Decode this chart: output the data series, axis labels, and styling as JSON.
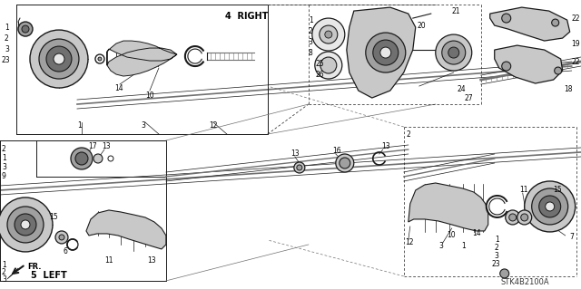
{
  "bg_color": "#ffffff",
  "line_color": "#1a1a1a",
  "gray1": "#c8c8c8",
  "gray2": "#a0a0a0",
  "gray3": "#707070",
  "gray4": "#e8e8e8",
  "watermark": "STK4B2100A",
  "figsize": [
    6.4,
    3.19
  ],
  "dpi": 100,
  "label_right": "4  RIGHT",
  "label_left": "5  LEFT"
}
